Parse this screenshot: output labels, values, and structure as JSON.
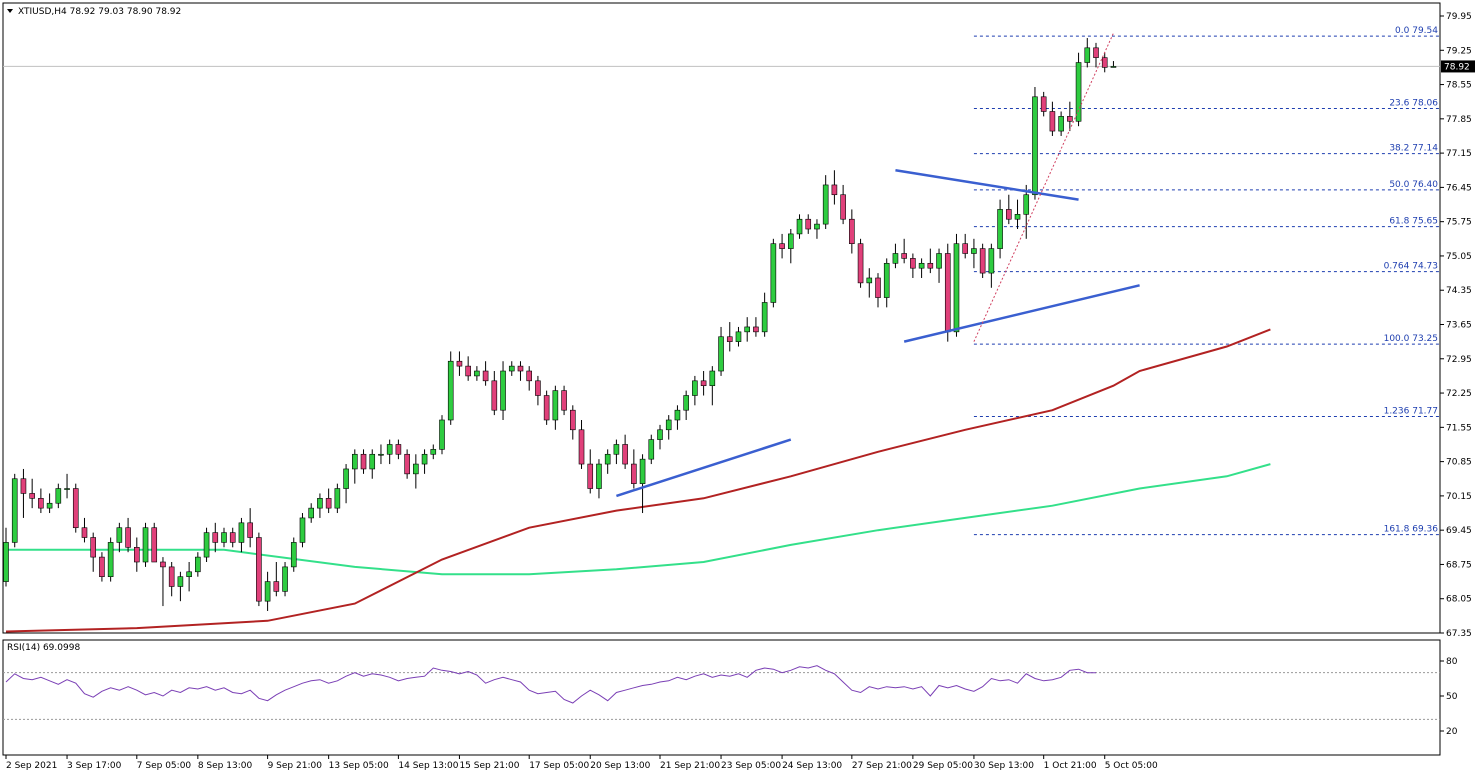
{
  "chart_data": {
    "type": "candlestick",
    "symbol": "XTIUSD,H4",
    "ohlc_header": "78.92 79.03 78.90 78.92",
    "current_price": "78.92",
    "price_ylim": [
      67.35,
      79.95
    ],
    "price_ticks": [
      "79.95",
      "79.25",
      "78.55",
      "77.85",
      "77.15",
      "76.45",
      "75.75",
      "75.05",
      "74.35",
      "73.65",
      "72.95",
      "72.25",
      "71.55",
      "70.85",
      "70.15",
      "69.45",
      "68.75",
      "68.05",
      "67.35"
    ],
    "x_ticks": [
      "2 Sep 2021",
      "3 Sep 17:00",
      "7 Sep 05:00",
      "8 Sep 13:00",
      "9 Sep 21:00",
      "13 Sep 05:00",
      "14 Sep 13:00",
      "15 Sep 21:00",
      "17 Sep 05:00",
      "20 Sep 13:00",
      "21 Sep 21:00",
      "23 Sep 05:00",
      "24 Sep 13:00",
      "27 Sep 21:00",
      "29 Sep 05:00",
      "30 Sep 13:00",
      "1 Oct 21:00",
      "5 Oct 05:00"
    ],
    "bull_color": "#2ecc40",
    "bear_color": "#e0407a",
    "candles": [
      [
        68.4,
        69.5,
        68.3,
        69.2
      ],
      [
        69.2,
        70.6,
        69.1,
        70.5
      ],
      [
        70.5,
        70.7,
        69.7,
        70.2
      ],
      [
        70.2,
        70.5,
        69.9,
        70.1
      ],
      [
        70.1,
        70.3,
        69.8,
        69.9
      ],
      [
        69.9,
        70.2,
        69.8,
        70.0
      ],
      [
        70.0,
        70.4,
        69.9,
        70.3
      ],
      [
        70.3,
        70.6,
        70.1,
        70.3
      ],
      [
        70.3,
        70.4,
        69.4,
        69.5
      ],
      [
        69.5,
        69.7,
        69.2,
        69.3
      ],
      [
        69.3,
        69.4,
        68.6,
        68.9
      ],
      [
        68.9,
        69.0,
        68.4,
        68.5
      ],
      [
        68.5,
        69.3,
        68.4,
        69.2
      ],
      [
        69.2,
        69.6,
        69.0,
        69.5
      ],
      [
        69.5,
        69.7,
        69.0,
        69.1
      ],
      [
        69.1,
        69.3,
        68.6,
        68.8
      ],
      [
        68.8,
        69.6,
        68.7,
        69.5
      ],
      [
        69.5,
        69.6,
        68.8,
        68.8
      ],
      [
        68.8,
        68.9,
        67.9,
        68.7
      ],
      [
        68.7,
        68.8,
        68.1,
        68.3
      ],
      [
        68.3,
        68.6,
        68.0,
        68.5
      ],
      [
        68.5,
        68.8,
        68.2,
        68.6
      ],
      [
        68.6,
        69.0,
        68.5,
        68.9
      ],
      [
        68.9,
        69.5,
        68.8,
        69.4
      ],
      [
        69.4,
        69.6,
        69.0,
        69.2
      ],
      [
        69.2,
        69.5,
        69.1,
        69.4
      ],
      [
        69.4,
        69.5,
        69.1,
        69.2
      ],
      [
        69.2,
        69.7,
        69.0,
        69.6
      ],
      [
        69.6,
        69.9,
        69.1,
        69.3
      ],
      [
        69.3,
        69.4,
        67.9,
        68.0
      ],
      [
        68.0,
        68.6,
        67.8,
        68.4
      ],
      [
        68.4,
        68.8,
        68.1,
        68.2
      ],
      [
        68.2,
        68.8,
        68.1,
        68.7
      ],
      [
        68.7,
        69.3,
        68.6,
        69.2
      ],
      [
        69.2,
        69.8,
        69.1,
        69.7
      ],
      [
        69.7,
        70.0,
        69.6,
        69.9
      ],
      [
        69.9,
        70.2,
        69.7,
        70.1
      ],
      [
        70.1,
        70.3,
        69.8,
        69.9
      ],
      [
        69.9,
        70.4,
        69.8,
        70.3
      ],
      [
        70.3,
        70.8,
        70.0,
        70.7
      ],
      [
        70.7,
        71.1,
        70.4,
        71.0
      ],
      [
        71.0,
        71.1,
        70.6,
        70.7
      ],
      [
        70.7,
        71.1,
        70.5,
        71.0
      ],
      [
        71.0,
        71.2,
        70.8,
        71.0
      ],
      [
        71.0,
        71.3,
        70.8,
        71.2
      ],
      [
        71.2,
        71.3,
        70.9,
        71.0
      ],
      [
        71.0,
        71.1,
        70.5,
        70.6
      ],
      [
        70.6,
        71.0,
        70.3,
        70.8
      ],
      [
        70.8,
        71.1,
        70.6,
        71.0
      ],
      [
        71.0,
        71.2,
        70.9,
        71.1
      ],
      [
        71.1,
        71.8,
        71.0,
        71.7
      ],
      [
        71.7,
        73.1,
        71.6,
        72.9
      ],
      [
        72.9,
        73.1,
        72.6,
        72.8
      ],
      [
        72.8,
        73.0,
        72.5,
        72.6
      ],
      [
        72.6,
        72.8,
        72.5,
        72.7
      ],
      [
        72.7,
        72.9,
        72.4,
        72.5
      ],
      [
        72.5,
        72.7,
        71.8,
        71.9
      ],
      [
        71.9,
        72.9,
        71.7,
        72.7
      ],
      [
        72.7,
        72.9,
        72.6,
        72.8
      ],
      [
        72.8,
        72.9,
        72.5,
        72.7
      ],
      [
        72.7,
        72.8,
        72.3,
        72.5
      ],
      [
        72.5,
        72.6,
        72.0,
        72.2
      ],
      [
        72.2,
        72.3,
        71.6,
        71.7
      ],
      [
        71.7,
        72.4,
        71.5,
        72.3
      ],
      [
        72.3,
        72.4,
        71.8,
        71.9
      ],
      [
        71.9,
        72.0,
        71.3,
        71.5
      ],
      [
        71.5,
        71.7,
        70.7,
        70.8
      ],
      [
        70.8,
        71.1,
        70.2,
        70.3
      ],
      [
        70.3,
        70.9,
        70.1,
        70.8
      ],
      [
        70.8,
        71.1,
        70.6,
        71.0
      ],
      [
        71.0,
        71.3,
        70.8,
        71.2
      ],
      [
        71.2,
        71.4,
        70.7,
        70.8
      ],
      [
        70.8,
        71.1,
        70.3,
        70.4
      ],
      [
        70.4,
        71.0,
        69.8,
        70.9
      ],
      [
        70.9,
        71.4,
        70.8,
        71.3
      ],
      [
        71.3,
        71.6,
        71.1,
        71.5
      ],
      [
        71.5,
        71.8,
        71.3,
        71.7
      ],
      [
        71.7,
        72.0,
        71.5,
        71.9
      ],
      [
        71.9,
        72.3,
        71.7,
        72.2
      ],
      [
        72.2,
        72.6,
        72.0,
        72.5
      ],
      [
        72.5,
        72.7,
        72.2,
        72.4
      ],
      [
        72.4,
        72.8,
        72.0,
        72.7
      ],
      [
        72.7,
        73.6,
        72.6,
        73.4
      ],
      [
        73.4,
        73.7,
        73.1,
        73.3
      ],
      [
        73.3,
        73.6,
        73.2,
        73.5
      ],
      [
        73.5,
        73.8,
        73.3,
        73.6
      ],
      [
        73.6,
        73.8,
        73.4,
        73.5
      ],
      [
        73.5,
        74.3,
        73.4,
        74.1
      ],
      [
        74.1,
        75.4,
        74.0,
        75.3
      ],
      [
        75.3,
        75.5,
        75.0,
        75.2
      ],
      [
        75.2,
        75.6,
        74.9,
        75.5
      ],
      [
        75.5,
        75.9,
        75.4,
        75.8
      ],
      [
        75.8,
        75.9,
        75.5,
        75.6
      ],
      [
        75.6,
        75.8,
        75.4,
        75.7
      ],
      [
        75.7,
        76.7,
        75.6,
        76.5
      ],
      [
        76.5,
        76.8,
        76.1,
        76.3
      ],
      [
        76.3,
        76.5,
        75.7,
        75.8
      ],
      [
        75.8,
        76.0,
        75.1,
        75.3
      ],
      [
        75.3,
        75.4,
        74.4,
        74.5
      ],
      [
        74.5,
        74.8,
        74.2,
        74.6
      ],
      [
        74.6,
        74.7,
        74.0,
        74.2
      ],
      [
        74.2,
        75.0,
        74.0,
        74.9
      ],
      [
        74.9,
        75.3,
        74.8,
        75.1
      ],
      [
        75.1,
        75.4,
        74.9,
        75.0
      ],
      [
        75.0,
        75.1,
        74.6,
        74.8
      ],
      [
        74.8,
        75.0,
        74.6,
        74.9
      ],
      [
        74.9,
        75.2,
        74.7,
        74.8
      ],
      [
        74.8,
        75.2,
        74.5,
        75.1
      ],
      [
        75.1,
        75.3,
        73.3,
        73.5
      ],
      [
        73.5,
        75.5,
        73.4,
        75.3
      ],
      [
        75.3,
        75.5,
        75.0,
        75.1
      ],
      [
        75.1,
        75.4,
        74.8,
        75.2
      ],
      [
        75.2,
        75.3,
        74.6,
        74.7
      ],
      [
        74.7,
        75.3,
        74.4,
        75.2
      ],
      [
        75.2,
        76.2,
        75.0,
        76.0
      ],
      [
        76.0,
        76.3,
        75.7,
        75.8
      ],
      [
        75.8,
        76.2,
        75.6,
        75.9
      ],
      [
        75.9,
        76.5,
        75.4,
        76.3
      ],
      [
        76.3,
        78.5,
        76.2,
        78.3
      ],
      [
        78.3,
        78.4,
        77.9,
        78.0
      ],
      [
        78.0,
        78.2,
        77.5,
        77.6
      ],
      [
        77.6,
        78.0,
        77.5,
        77.9
      ],
      [
        77.9,
        78.2,
        77.6,
        77.8
      ],
      [
        77.8,
        79.2,
        77.7,
        79.0
      ],
      [
        79.0,
        79.5,
        78.9,
        79.3
      ],
      [
        79.3,
        79.4,
        78.9,
        79.1
      ],
      [
        79.1,
        79.2,
        78.8,
        78.9
      ],
      [
        78.92,
        79.03,
        78.9,
        78.92
      ]
    ],
    "ma_red": [
      [
        0,
        67.38
      ],
      [
        15,
        67.45
      ],
      [
        30,
        67.6
      ],
      [
        40,
        67.95
      ],
      [
        50,
        68.85
      ],
      [
        60,
        69.5
      ],
      [
        70,
        69.85
      ],
      [
        80,
        70.1
      ],
      [
        90,
        70.55
      ],
      [
        100,
        71.05
      ],
      [
        110,
        71.5
      ],
      [
        120,
        71.9
      ],
      [
        127,
        72.4
      ],
      [
        130,
        72.7
      ],
      [
        137,
        73.05
      ],
      [
        140,
        73.2
      ],
      [
        145,
        73.55
      ]
    ],
    "ma_green": [
      [
        0,
        69.05
      ],
      [
        15,
        69.05
      ],
      [
        25,
        69.05
      ],
      [
        40,
        68.7
      ],
      [
        50,
        68.55
      ],
      [
        60,
        68.55
      ],
      [
        70,
        68.65
      ],
      [
        80,
        68.8
      ],
      [
        90,
        69.15
      ],
      [
        100,
        69.45
      ],
      [
        110,
        69.7
      ],
      [
        120,
        69.95
      ],
      [
        130,
        70.3
      ],
      [
        140,
        70.55
      ],
      [
        145,
        70.8
      ]
    ],
    "trendlines": [
      [
        [
          70,
          70.15
        ],
        [
          90,
          71.3
        ]
      ],
      [
        [
          103,
          73.3
        ],
        [
          130,
          74.45
        ]
      ],
      [
        [
          102,
          76.8
        ],
        [
          123,
          76.2
        ]
      ]
    ],
    "fib_dotted": [
      [
        [
          111,
          73.3
        ],
        [
          127,
          79.6
        ]
      ]
    ],
    "fib_levels": [
      {
        "label": "0.0 79.54",
        "price": 79.54
      },
      {
        "label": "23.6 78.06",
        "price": 78.06
      },
      {
        "label": "38.2 77.14",
        "price": 77.14
      },
      {
        "label": "50.0 76.40",
        "price": 76.4
      },
      {
        "label": "61.8 75.65",
        "price": 75.65
      },
      {
        "label": "0.764 74.73",
        "price": 74.73
      },
      {
        "label": "100.0 73.25",
        "price": 73.25
      },
      {
        "label": "1.236 71.77",
        "price": 71.77
      },
      {
        "label": "161.8 69.36",
        "price": 69.36
      }
    ],
    "rsi": {
      "label": "RSI(14) 69.0998",
      "ylim": [
        0,
        100
      ],
      "ticks": [
        "80",
        "50",
        "20"
      ],
      "tick_values": [
        80,
        50,
        20
      ],
      "ref_lines": [
        70,
        30
      ],
      "values": [
        62,
        69,
        65,
        64,
        66,
        63,
        60,
        64,
        61,
        52,
        49,
        54,
        57,
        55,
        58,
        55,
        51,
        53,
        50,
        55,
        53,
        57,
        56,
        58,
        55,
        57,
        53,
        52,
        55,
        48,
        46,
        51,
        55,
        58,
        61,
        63,
        64,
        61,
        63,
        67,
        70,
        67,
        69,
        68,
        66,
        63,
        65,
        66,
        67,
        74,
        72,
        71,
        69,
        71,
        68,
        61,
        64,
        66,
        64,
        62,
        55,
        52,
        53,
        54,
        47,
        44,
        50,
        55,
        51,
        46,
        53,
        55,
        57,
        59,
        60,
        62,
        63,
        66,
        64,
        67,
        69,
        66,
        68,
        67,
        69,
        66,
        72,
        74,
        73,
        70,
        72,
        75,
        74,
        76,
        72,
        69,
        62,
        55,
        53,
        58,
        56,
        58,
        57,
        58,
        56,
        58,
        50,
        59,
        57,
        59,
        56,
        54,
        58,
        65,
        63,
        64,
        61,
        69,
        65,
        63,
        64,
        66,
        72,
        73,
        70,
        70
      ]
    }
  }
}
